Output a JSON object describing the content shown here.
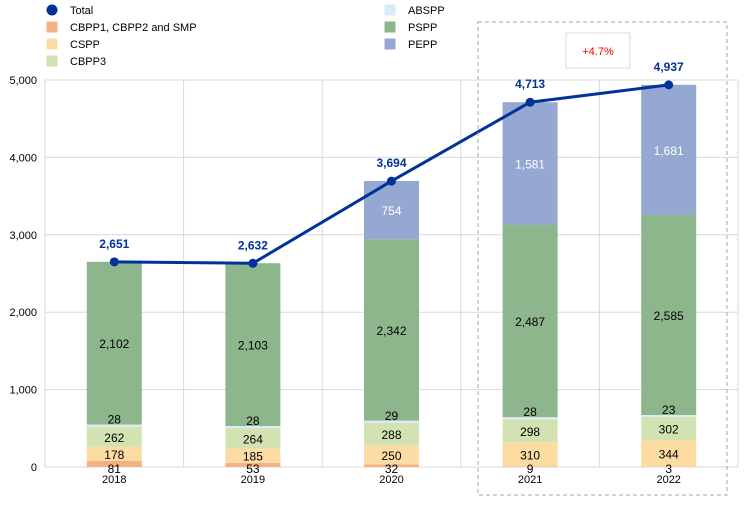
{
  "chart_data": {
    "type": "bar",
    "stacked": true,
    "categories": [
      "2018",
      "2019",
      "2020",
      "2021",
      "2022"
    ],
    "ylim": [
      0,
      5000
    ],
    "yticks": [
      "0",
      "1,000",
      "2,000",
      "3,000",
      "4,000",
      "5,000"
    ],
    "ytick_values": [
      0,
      1000,
      2000,
      3000,
      4000,
      5000
    ],
    "grid": true,
    "legend_position": "top",
    "series": [
      {
        "name": "CBPP1, CBPP2 and SMP",
        "color": "#f4b183",
        "values": [
          81,
          53,
          32,
          9,
          3
        ],
        "labels": [
          "81",
          "53",
          "32",
          "9",
          "3"
        ],
        "label_color": "#000000"
      },
      {
        "name": "CSPP",
        "color": "#fddca4",
        "values": [
          178,
          185,
          250,
          310,
          344
        ],
        "labels": [
          "178",
          "185",
          "250",
          "310",
          "344"
        ],
        "label_color": "#000000"
      },
      {
        "name": "CBPP3",
        "color": "#d3e2b2",
        "values": [
          262,
          264,
          288,
          298,
          302
        ],
        "labels": [
          "262",
          "264",
          "288",
          "298",
          "302"
        ],
        "label_color": "#000000"
      },
      {
        "name": "ABSPP",
        "color": "#d8ebf6",
        "values": [
          28,
          28,
          29,
          28,
          23
        ],
        "labels": [
          "28",
          "28",
          "29",
          "28",
          "23"
        ],
        "label_color": "#000000"
      },
      {
        "name": "PSPP",
        "color": "#8db68c",
        "values": [
          2102,
          2103,
          2342,
          2487,
          2585
        ],
        "labels": [
          "2,102",
          "2,103",
          "2,342",
          "2,487",
          "2,585"
        ],
        "label_color": "#000000"
      },
      {
        "name": "PEPP",
        "color": "#94a8d1",
        "values": [
          0,
          0,
          754,
          1581,
          1681
        ],
        "labels": [
          "",
          "",
          "754",
          "1,581",
          "1,681"
        ],
        "label_color": "#ffffff"
      }
    ],
    "line": {
      "name": "Total",
      "color": "#003299",
      "values": [
        2651,
        2632,
        3694,
        4713,
        4937
      ],
      "labels": [
        "2,651",
        "2,632",
        "3,694",
        "4,713",
        "4,937"
      ]
    },
    "annotation": {
      "text": "+4.7%",
      "color": "#ff0000"
    }
  }
}
